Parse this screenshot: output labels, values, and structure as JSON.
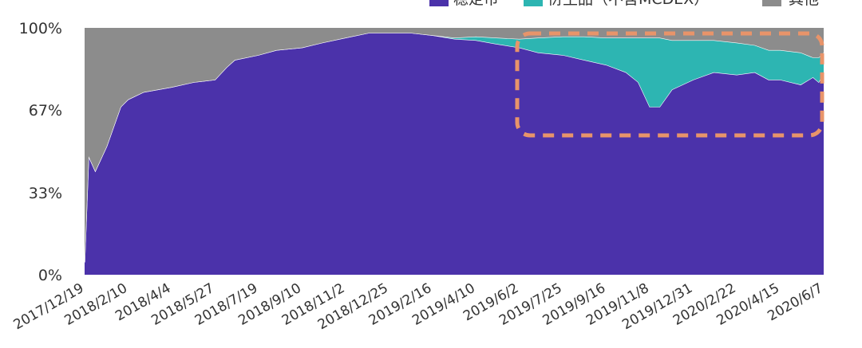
{
  "chart_data": {
    "type": "area",
    "stacked": true,
    "normalized": true,
    "ylim": [
      0,
      100
    ],
    "y_ticks": [
      "0%",
      "33%",
      "67%",
      "100%"
    ],
    "y_tick_values": [
      0,
      33.3,
      66.7,
      100
    ],
    "x_tick_labels": [
      "2017/12/19",
      "2018/2/10",
      "2018/4/4",
      "2018/5/27",
      "2018/7/19",
      "2018/9/10",
      "2018/11/2",
      "2018/12/25",
      "2019/2/16",
      "2019/4/10",
      "2019/6/2",
      "2019/7/25",
      "2019/9/16",
      "2019/11/8",
      "2019/12/31",
      "2020/2/22",
      "2020/4/15",
      "2020/6/7"
    ],
    "legend": [
      {
        "name": "稳定币",
        "color": "#4B32AA"
      },
      {
        "name": "衍生品（不含MCDEX）",
        "color": "#2DB5B2"
      },
      {
        "name": "其他",
        "color": "#8C8C8C"
      }
    ],
    "legend_position": "top",
    "x": [
      "2017/12/19",
      "2017/12/24",
      "2018/1/1",
      "2018/1/15",
      "2018/2/1",
      "2018/2/10",
      "2018/3/1",
      "2018/4/4",
      "2018/5/1",
      "2018/5/27",
      "2018/6/10",
      "2018/6/20",
      "2018/7/19",
      "2018/8/10",
      "2018/9/10",
      "2018/10/5",
      "2018/11/2",
      "2018/12/1",
      "2018/12/25",
      "2019/1/20",
      "2019/2/16",
      "2019/3/15",
      "2019/4/10",
      "2019/5/5",
      "2019/6/2",
      "2019/6/25",
      "2019/7/25",
      "2019/8/20",
      "2019/9/16",
      "2019/10/10",
      "2019/10/25",
      "2019/11/8",
      "2019/11/20",
      "2019/12/5",
      "2019/12/31",
      "2020/1/25",
      "2020/2/22",
      "2020/3/15",
      "2020/4/1",
      "2020/4/15",
      "2020/5/10",
      "2020/5/25",
      "2020/6/1",
      "2020/6/7"
    ],
    "series": [
      {
        "name": "稳定币",
        "values": [
          5,
          48,
          42,
          52,
          68,
          71,
          74,
          76,
          78,
          79,
          84,
          87,
          89,
          91,
          92,
          94,
          96,
          98,
          98,
          98,
          97,
          95.5,
          95,
          93.5,
          92,
          90,
          89,
          87,
          85,
          82,
          78,
          68,
          68,
          75,
          79,
          82,
          81,
          82,
          79,
          79,
          77,
          80,
          78,
          82
        ]
      },
      {
        "name": "衍生品（不含MCDEX）",
        "values": [
          0,
          0,
          0,
          0,
          0,
          0,
          0,
          0,
          0,
          0,
          0,
          0,
          0,
          0,
          0,
          0,
          0,
          0,
          0,
          0,
          0,
          0.5,
          1.5,
          2.5,
          3.5,
          6,
          7.5,
          9.5,
          11,
          14,
          18,
          28,
          28,
          20,
          16,
          13,
          13,
          11,
          12,
          12,
          13,
          8,
          10,
          8
        ]
      },
      {
        "name": "其他",
        "values": [
          95,
          52,
          58,
          48,
          32,
          29,
          26,
          24,
          22,
          21,
          16,
          13,
          11,
          9,
          8,
          6,
          4,
          2,
          2,
          2,
          3,
          4,
          3.5,
          4,
          4.5,
          4,
          3.5,
          3.5,
          4,
          4,
          4,
          4,
          4,
          5,
          5,
          5,
          6,
          7,
          9,
          9,
          10,
          12,
          12,
          10
        ]
      }
    ],
    "annotation": "dashed-box"
  }
}
